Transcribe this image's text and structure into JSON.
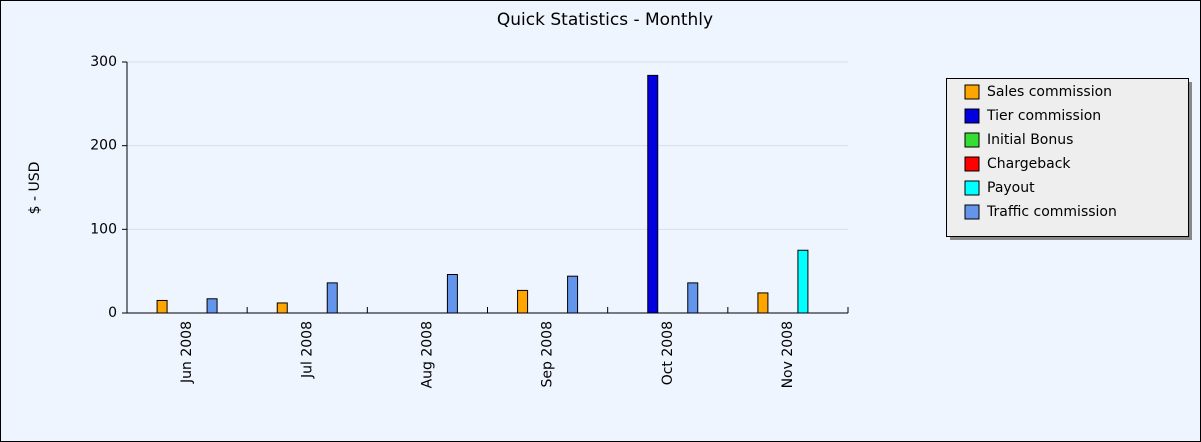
{
  "chart_data": {
    "type": "bar",
    "title": "Quick Statistics - Monthly",
    "y_label": "$ - USD",
    "categories": [
      "Jun 2008",
      "Jul 2008",
      "Aug 2008",
      "Sep 2008",
      "Oct 2008",
      "Nov 2008"
    ],
    "series": [
      {
        "name": "Sales commission",
        "color": "#ffa500",
        "values": [
          15,
          12,
          0,
          27,
          0,
          24
        ]
      },
      {
        "name": "Tier commission",
        "color": "#0000e0",
        "values": [
          0,
          0,
          0,
          0,
          284,
          0
        ]
      },
      {
        "name": "Initial Bonus",
        "color": "#33dd33",
        "values": [
          0,
          0,
          0,
          0,
          0,
          0
        ]
      },
      {
        "name": "Chargeback",
        "color": "#ff0000",
        "values": [
          0,
          0,
          0,
          0,
          0,
          0
        ]
      },
      {
        "name": "Payout",
        "color": "#00ffff",
        "values": [
          0,
          0,
          0,
          0,
          0,
          75
        ]
      },
      {
        "name": "Traffic commission",
        "color": "#6495ed",
        "values": [
          17,
          36,
          46,
          44,
          36,
          0
        ]
      }
    ],
    "ylim": [
      0,
      300
    ],
    "yticks": [
      0,
      100,
      200,
      300
    ],
    "grid": true,
    "legend": "right"
  }
}
